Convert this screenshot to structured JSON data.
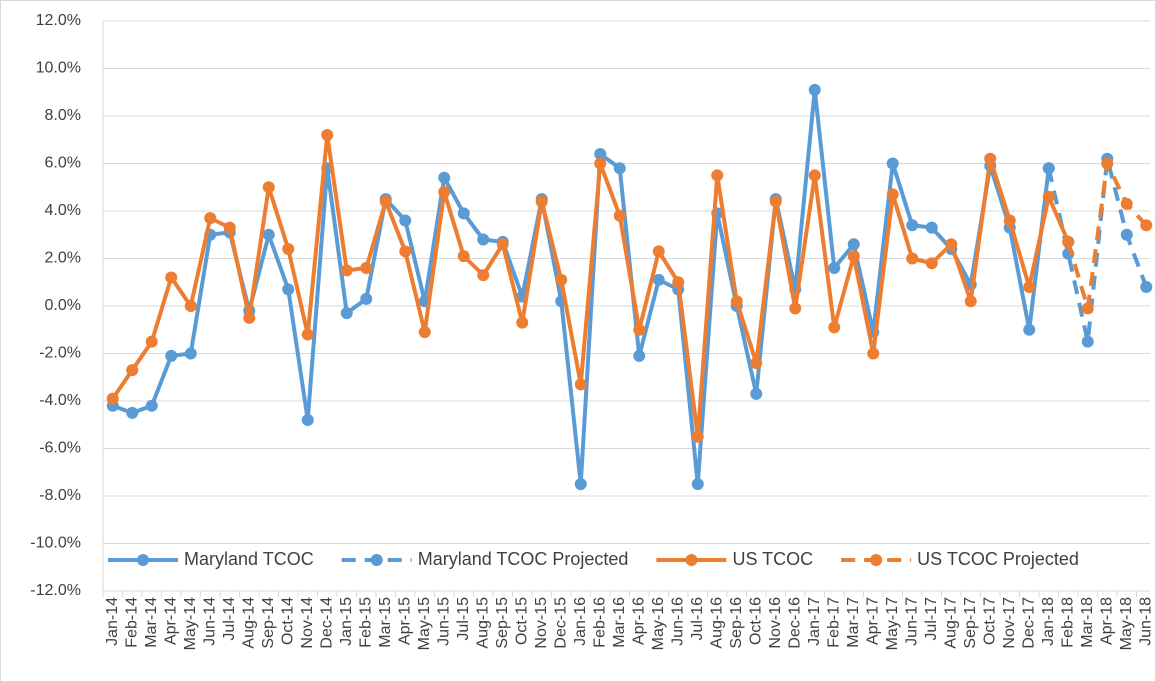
{
  "chart_data": {
    "type": "line",
    "categories": [
      "Jan-14",
      "Feb-14",
      "Mar-14",
      "Apr-14",
      "May-14",
      "Jun-14",
      "Jul-14",
      "Aug-14",
      "Sep-14",
      "Oct-14",
      "Nov-14",
      "Dec-14",
      "Jan-15",
      "Feb-15",
      "Mar-15",
      "Apr-15",
      "May-15",
      "Jun-15",
      "Jul-15",
      "Aug-15",
      "Sep-15",
      "Oct-15",
      "Nov-15",
      "Dec-15",
      "Jan-16",
      "Feb-16",
      "Mar-16",
      "Apr-16",
      "May-16",
      "Jun-16",
      "Jul-16",
      "Aug-16",
      "Sep-16",
      "Oct-16",
      "Nov-16",
      "Dec-16",
      "Jan-17",
      "Feb-17",
      "Mar-17",
      "Apr-17",
      "May-17",
      "Jun-17",
      "Jul-17",
      "Aug-17",
      "Sep-17",
      "Oct-17",
      "Nov-17",
      "Dec-17",
      "Jan-18",
      "Feb-18",
      "Mar-18",
      "Apr-18",
      "May-18",
      "Jun-18"
    ],
    "series": [
      {
        "name": "Maryland TCOC",
        "color": "#5b9bd5",
        "dashed": false,
        "values": [
          -4.2,
          -4.5,
          -4.2,
          -2.1,
          -2.0,
          3.0,
          3.1,
          -0.2,
          3.0,
          0.7,
          -4.8,
          5.8,
          -0.3,
          0.3,
          4.5,
          3.6,
          0.2,
          5.4,
          3.9,
          2.8,
          2.7,
          0.4,
          4.5,
          0.2,
          -7.5,
          6.4,
          5.8,
          -2.1,
          1.1,
          0.7,
          -7.5,
          3.9,
          0.0,
          -3.7,
          4.5,
          0.7,
          9.1,
          1.6,
          2.6,
          -1.1,
          6.0,
          3.4,
          3.3,
          2.4,
          0.9,
          5.9,
          3.3,
          -1.0,
          5.8,
          null,
          null,
          null,
          null,
          null
        ]
      },
      {
        "name": "Maryland TCOC Projected",
        "color": "#5b9bd5",
        "dashed": true,
        "values": [
          null,
          null,
          null,
          null,
          null,
          null,
          null,
          null,
          null,
          null,
          null,
          null,
          null,
          null,
          null,
          null,
          null,
          null,
          null,
          null,
          null,
          null,
          null,
          null,
          null,
          null,
          null,
          null,
          null,
          null,
          null,
          null,
          null,
          null,
          null,
          null,
          null,
          null,
          null,
          null,
          null,
          null,
          null,
          null,
          null,
          null,
          null,
          null,
          5.8,
          2.2,
          -1.5,
          6.2,
          3.0,
          0.8
        ]
      },
      {
        "name": "US TCOC",
        "color": "#ed7d31",
        "dashed": false,
        "values": [
          -3.9,
          -2.7,
          -1.5,
          1.2,
          0.0,
          3.7,
          3.3,
          -0.5,
          5.0,
          2.4,
          -1.2,
          7.2,
          1.5,
          1.6,
          4.4,
          2.3,
          -1.1,
          4.8,
          2.1,
          1.3,
          2.6,
          -0.7,
          4.4,
          1.1,
          -3.3,
          6.0,
          3.8,
          -1.0,
          2.3,
          1.0,
          -5.5,
          5.5,
          0.2,
          -2.4,
          4.4,
          -0.1,
          5.5,
          -0.9,
          2.1,
          -2.0,
          4.7,
          2.0,
          1.8,
          2.6,
          0.2,
          6.2,
          3.6,
          0.8,
          4.6,
          2.7,
          null,
          null,
          null,
          null
        ]
      },
      {
        "name": "US TCOC Projected",
        "color": "#ed7d31",
        "dashed": true,
        "values": [
          null,
          null,
          null,
          null,
          null,
          null,
          null,
          null,
          null,
          null,
          null,
          null,
          null,
          null,
          null,
          null,
          null,
          null,
          null,
          null,
          null,
          null,
          null,
          null,
          null,
          null,
          null,
          null,
          null,
          null,
          null,
          null,
          null,
          null,
          null,
          null,
          null,
          null,
          null,
          null,
          null,
          null,
          null,
          null,
          null,
          null,
          null,
          null,
          null,
          2.7,
          -0.1,
          6.0,
          4.3,
          3.4
        ]
      }
    ],
    "ylim": [
      -12,
      12
    ],
    "yticks": [
      {
        "value": -12,
        "label": "-12.0%"
      },
      {
        "value": -10,
        "label": "-10.0%"
      },
      {
        "value": -8,
        "label": "-8.0%"
      },
      {
        "value": -6,
        "label": "-6.0%"
      },
      {
        "value": -4,
        "label": "-4.0%"
      },
      {
        "value": -2,
        "label": "-2.0%"
      },
      {
        "value": 0,
        "label": "0.0%"
      },
      {
        "value": 2,
        "label": "2.0%"
      },
      {
        "value": 4,
        "label": "4.0%"
      },
      {
        "value": 6,
        "label": "6.0%"
      },
      {
        "value": 8,
        "label": "8.0%"
      },
      {
        "value": 10,
        "label": "10.0%"
      },
      {
        "value": 12,
        "label": "12.0%"
      }
    ],
    "grid": true,
    "legend": "bottom"
  }
}
